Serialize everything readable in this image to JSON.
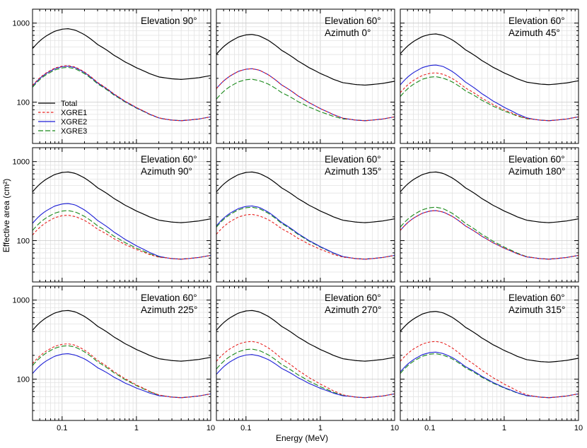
{
  "figure": {
    "xlabel": "Energy (MeV)",
    "ylabel": "Effective area (cm²)"
  },
  "chart_data": {
    "type": "line",
    "xscale": "log",
    "yscale": "log",
    "xlim": [
      0.04,
      10
    ],
    "ylim": [
      30,
      1500
    ],
    "xticks": [
      0.1,
      1,
      10
    ],
    "xtick_labels": [
      "0.1",
      "1",
      "10"
    ],
    "yticks": [
      100,
      1000
    ],
    "ytick_labels": [
      "100",
      "1000"
    ],
    "grid": true,
    "legend": {
      "placement": "left",
      "entries": [
        {
          "name": "Total",
          "color": "#000000",
          "dash": "solid"
        },
        {
          "name": "XGRE1",
          "color": "#e8211f",
          "dash": "short-dash"
        },
        {
          "name": "XGRE2",
          "color": "#1d1fd6",
          "dash": "solid"
        },
        {
          "name": "XGRE3",
          "color": "#1a8a1a",
          "dash": "long-dash"
        }
      ]
    },
    "x": [
      0.04,
      0.05,
      0.06,
      0.08,
      0.1,
      0.12,
      0.15,
      0.2,
      0.3,
      0.5,
      0.7,
      1,
      1.5,
      2,
      3,
      4,
      5,
      7,
      10
    ],
    "shape": [
      0.56,
      0.7,
      0.8,
      0.93,
      0.985,
      1.0,
      0.96,
      0.84,
      0.63,
      0.46,
      0.38,
      0.32,
      0.27,
      0.245,
      0.232,
      0.228,
      0.232,
      0.24,
      0.255
    ],
    "panels": [
      {
        "line1": "Elevation 90°",
        "line2": "",
        "total_peak": 850,
        "peaks": {
          "XGRE1": 290,
          "XGRE2": 285,
          "XGRE3": 275
        }
      },
      {
        "line1": "Elevation 60°",
        "line2": "Azimuth 0°",
        "total_peak": 720,
        "peaks": {
          "XGRE1": 265,
          "XGRE2": 265,
          "XGRE3": 195
        }
      },
      {
        "line1": "Elevation 60°",
        "line2": "Azimuth 45°",
        "total_peak": 730,
        "peaks": {
          "XGRE1": 235,
          "XGRE2": 295,
          "XGRE3": 210
        }
      },
      {
        "line1": "Elevation 60°",
        "line2": "Azimuth 90°",
        "total_peak": 740,
        "peaks": {
          "XGRE1": 210,
          "XGRE2": 295,
          "XGRE3": 240
        }
      },
      {
        "line1": "Elevation 60°",
        "line2": "Azimuth 135°",
        "total_peak": 740,
        "peaks": {
          "XGRE1": 215,
          "XGRE2": 275,
          "XGRE3": 265
        }
      },
      {
        "line1": "Elevation 60°",
        "line2": "Azimuth 180°",
        "total_peak": 740,
        "peaks": {
          "XGRE1": 240,
          "XGRE2": 240,
          "XGRE3": 265
        }
      },
      {
        "line1": "Elevation 60°",
        "line2": "Azimuth 225°",
        "total_peak": 740,
        "peaks": {
          "XGRE1": 280,
          "XGRE2": 210,
          "XGRE3": 265
        }
      },
      {
        "line1": "Elevation 60°",
        "line2": "Azimuth 270°",
        "total_peak": 740,
        "peaks": {
          "XGRE1": 300,
          "XGRE2": 205,
          "XGRE3": 240
        }
      },
      {
        "line1": "Elevation 60°",
        "line2": "Azimuth 315°",
        "total_peak": 720,
        "peaks": {
          "XGRE1": 300,
          "XGRE2": 220,
          "XGRE3": 210
        }
      }
    ]
  }
}
